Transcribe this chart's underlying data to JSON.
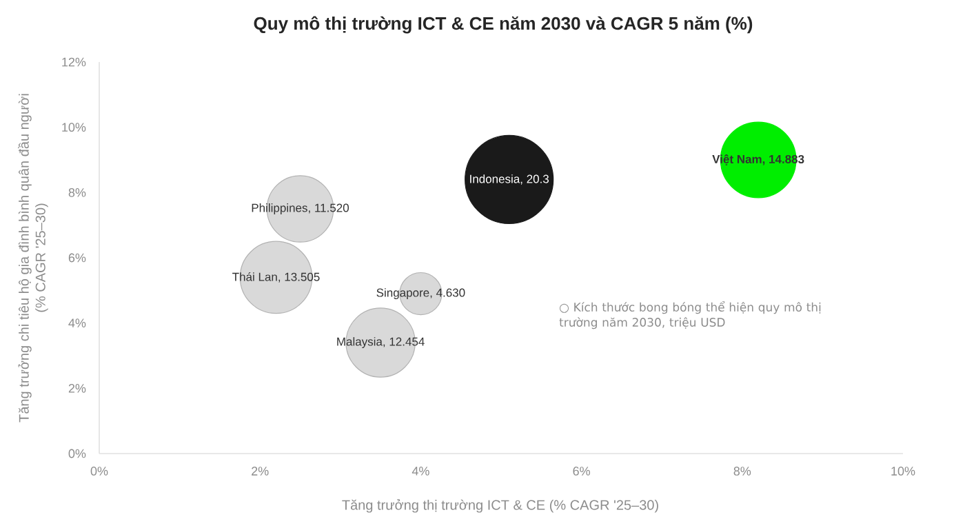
{
  "chart_data": {
    "type": "bubble",
    "title": "Quy mô thị trường ICT & CE năm 2030 và CAGR 5 năm (%)",
    "xlabel": "Tăng trưởng thị trường ICT & CE (% CAGR '25–30)",
    "ylabel": "Tăng trưởng chi tiêu hộ gia đình bình quân đầu người\n(% CAGR '25–30)",
    "x": [
      2.5,
      2.2,
      4.0,
      3.5,
      5.1,
      8.2
    ],
    "values": [
      7.5,
      5.4,
      4.9,
      3.4,
      8.4,
      9.0
    ],
    "sizes": [
      11.52,
      13.505,
      4.63,
      12.454,
      20.3,
      14.883
    ],
    "value_labels": [
      "Philippines, 11.520",
      "Thái Lan, 13.505",
      "Singapore, 4.630",
      "Malaysia, 12.454",
      "Indonesia, 20.3",
      "Việt Nam, 14.883"
    ],
    "colors": [
      "#d9d9d9",
      "#d9d9d9",
      "#d9d9d9",
      "#d9d9d9",
      "#1a1a1a",
      "#00ee00"
    ],
    "xlim": [
      0,
      10
    ],
    "ylim": [
      0,
      12
    ],
    "xticks": [
      {
        "value": 0,
        "label": "0%"
      },
      {
        "value": 2,
        "label": "2%"
      },
      {
        "value": 4,
        "label": "4%"
      },
      {
        "value": 6,
        "label": "6%"
      },
      {
        "value": 8,
        "label": "8%"
      },
      {
        "value": 10,
        "label": "10%"
      }
    ],
    "yticks": [
      {
        "value": 0,
        "label": "0%"
      },
      {
        "value": 2,
        "label": "2%"
      },
      {
        "value": 4,
        "label": "4%"
      },
      {
        "value": 6,
        "label": "6%"
      },
      {
        "value": 8,
        "label": "8%"
      },
      {
        "value": 10,
        "label": "10%"
      },
      {
        "value": 12,
        "label": "12%"
      }
    ],
    "annotations": [
      "○ Kích thước bong bóng thể hiện quy mô thị trường năm 2030, triệu USD"
    ],
    "grid": false
  }
}
